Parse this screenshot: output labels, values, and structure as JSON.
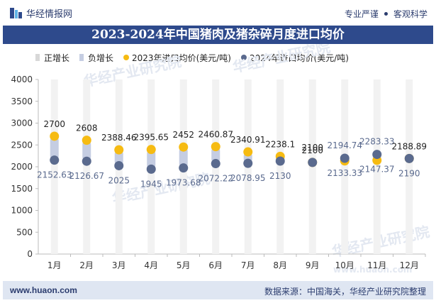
{
  "header": {
    "brand": "华经情报网",
    "slogan_left": "专业严谨",
    "slogan_right": "客观科学"
  },
  "title": "2023-2024年中国猪肉及猪杂碎月度进口均价",
  "footer": {
    "site": "www.huaon.com",
    "source": "数据来源：中国海关，华经产业研究院整理"
  },
  "watermark": "华经产业研究院",
  "watermark_url": "www.huaon.com",
  "colors": {
    "pos": "#d8d8d8",
    "neg": "#c5cde2",
    "y2023": "#f6bb12",
    "y2024": "#5a6a8e",
    "title_bg": "#2e4a8c"
  },
  "chart_data": {
    "type": "line",
    "title": "2023-2024年中国猪肉及猪杂碎月度进口均价",
    "categories": [
      "1月",
      "2月",
      "3月",
      "4月",
      "5月",
      "6月",
      "7月",
      "8月",
      "9月",
      "10月",
      "11月",
      "12月"
    ],
    "ylim": [
      0,
      4000
    ],
    "yticks": [
      0,
      500,
      1000,
      1500,
      2000,
      2500,
      3000,
      3500,
      4000
    ],
    "legend": [
      "正增长",
      "负增长",
      "2023年进口均价(美元/吨)",
      "2024年进口均价(美元/吨)"
    ],
    "series": [
      {
        "name": "2023年进口均价(美元/吨)",
        "values": [
          2700,
          2608,
          2388.46,
          2395.65,
          2452,
          2460.87,
          2340.91,
          2238.1,
          2100,
          2133.33,
          2147.37,
          2190
        ]
      },
      {
        "name": "2024年进口均价(美元/吨)",
        "values": [
          2152.63,
          2126.67,
          2025,
          1945,
          1973.68,
          2072.22,
          2078.95,
          2130,
          2100,
          2194.74,
          2283.33,
          2188.89
        ]
      }
    ],
    "labels_2023": [
      "2700",
      "2608",
      "2388.46",
      "2395.65",
      "2452",
      "2460.87",
      "2340.91",
      "2238.1",
      "2100",
      "2133.33",
      "2147.37",
      "2190"
    ],
    "labels_2024": [
      "2152.63",
      "2126.67",
      "2025",
      "1945",
      "1973.68",
      "2072.22",
      "2078.95",
      "2130",
      "2100",
      "2194.74",
      "2283.33",
      "2188.89"
    ]
  }
}
